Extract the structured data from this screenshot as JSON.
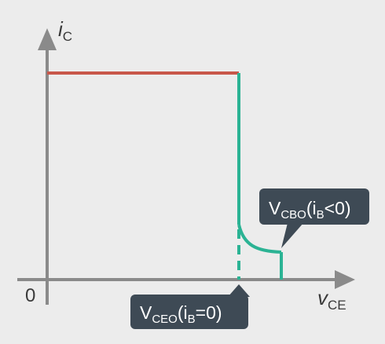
{
  "axes": {
    "y_label_main": "i",
    "y_label_sub": "C",
    "x_label_main": "v",
    "x_label_sub": "CE",
    "origin": "0"
  },
  "callouts": {
    "cbo": {
      "main": "V",
      "sub1": "CBO",
      "mid": "(i",
      "sub2": "B",
      "end": "<0)"
    },
    "ceo": {
      "main": "V",
      "sub1": "CEO",
      "mid": "(i",
      "sub2": "B",
      "end": "=0)"
    }
  },
  "colors": {
    "background": "#ececec",
    "axis": "#8a8a8a",
    "horizontal_line": "#c8574a",
    "curve": "#2bb394",
    "callout_bg": "#3e4a55",
    "callout_text": "#ffffff"
  }
}
